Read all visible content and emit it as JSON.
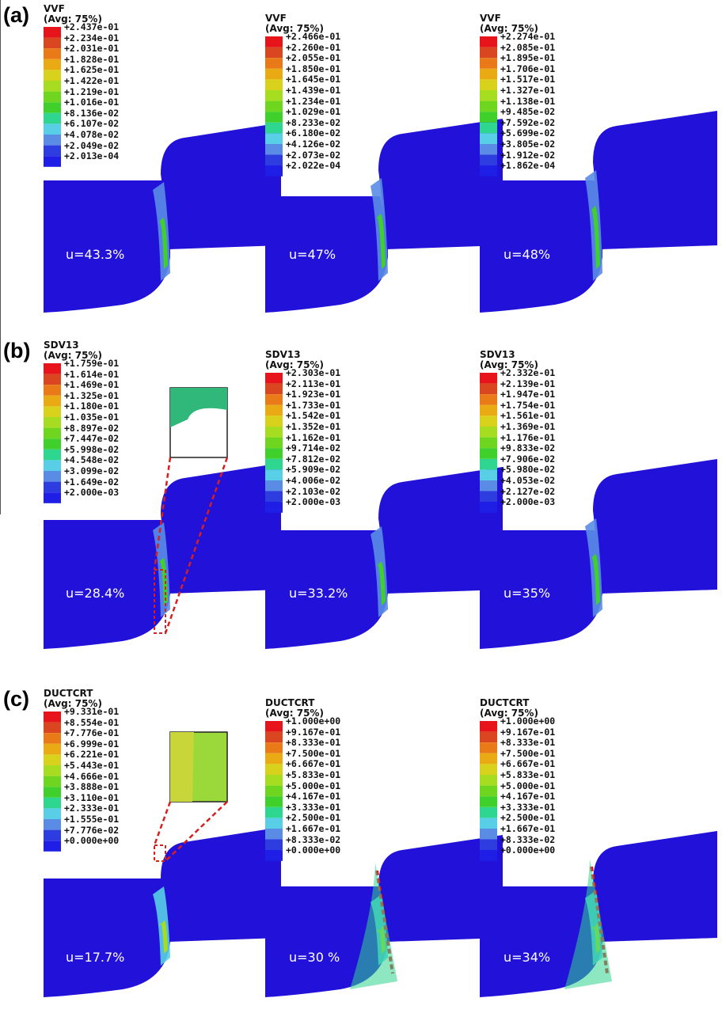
{
  "figure": {
    "rows": [
      {
        "label": "(a)",
        "panels": [
          {
            "variable": "VVF",
            "avg": "(Avg: 75%)",
            "u": "u=43.3%",
            "ticks": [
              "+2.437e-01",
              "+2.234e-01",
              "+2.031e-01",
              "+1.828e-01",
              "+1.625e-01",
              "+1.422e-01",
              "+1.219e-01",
              "+1.016e-01",
              "+8.136e-02",
              "+6.107e-02",
              "+4.078e-02",
              "+2.049e-02",
              "+2.013e-04"
            ]
          },
          {
            "variable": "VVF",
            "avg": "(Avg: 75%)",
            "u": "u=47%",
            "ticks": [
              "+2.466e-01",
              "+2.260e-01",
              "+2.055e-01",
              "+1.850e-01",
              "+1.645e-01",
              "+1.439e-01",
              "+1.234e-01",
              "+1.029e-01",
              "+8.233e-02",
              "+6.180e-02",
              "+4.126e-02",
              "+2.073e-02",
              "+2.022e-04"
            ]
          },
          {
            "variable": "VVF",
            "avg": "(Avg: 75%)",
            "u": "u=48%",
            "ticks": [
              "+2.274e-01",
              "+2.085e-01",
              "+1.895e-01",
              "+1.706e-01",
              "+1.517e-01",
              "+1.327e-01",
              "+1.138e-01",
              "+9.485e-02",
              "+7.592e-02",
              "+5.699e-02",
              "+3.805e-02",
              "+1.912e-02",
              "+1.862e-04"
            ]
          }
        ]
      },
      {
        "label": "(b)",
        "panels": [
          {
            "variable": "SDV13",
            "avg": "(Avg: 75%)",
            "u": "u=28.4%",
            "ticks": [
              "+1.759e-01",
              "+1.614e-01",
              "+1.469e-01",
              "+1.325e-01",
              "+1.180e-01",
              "+1.035e-01",
              "+8.897e-02",
              "+7.447e-02",
              "+5.998e-02",
              "+4.548e-02",
              "+3.099e-02",
              "+1.649e-02",
              "+2.000e-03"
            ]
          },
          {
            "variable": "SDV13",
            "avg": "(Avg: 75%)",
            "u": "u=33.2%",
            "ticks": [
              "+2.303e-01",
              "+2.113e-01",
              "+1.923e-01",
              "+1.733e-01",
              "+1.542e-01",
              "+1.352e-01",
              "+1.162e-01",
              "+9.714e-02",
              "+7.812e-02",
              "+5.909e-02",
              "+4.006e-02",
              "+2.103e-02",
              "+2.000e-03"
            ]
          },
          {
            "variable": "SDV13",
            "avg": "(Avg: 75%)",
            "u": "u=35%",
            "ticks": [
              "+2.332e-01",
              "+2.139e-01",
              "+1.947e-01",
              "+1.754e-01",
              "+1.561e-01",
              "+1.369e-01",
              "+1.176e-01",
              "+9.833e-02",
              "+7.906e-02",
              "+5.980e-02",
              "+4.053e-02",
              "+2.127e-02",
              "+2.000e-03"
            ]
          }
        ]
      },
      {
        "label": "(c)",
        "panels": [
          {
            "variable": "DUCTCRT",
            "avg": "(Avg: 75%)",
            "u": "u=17.7%",
            "ticks": [
              "+9.331e-01",
              "+8.554e-01",
              "+7.776e-01",
              "+6.999e-01",
              "+6.221e-01",
              "+5.443e-01",
              "+4.666e-01",
              "+3.888e-01",
              "+3.110e-01",
              "+2.333e-01",
              "+1.555e-01",
              "+7.776e-02",
              "+0.000e+00"
            ]
          },
          {
            "variable": "DUCTCRT",
            "avg": "(Avg: 75%)",
            "u": "u=30 %",
            "ticks": [
              "+1.000e+00",
              "+9.167e-01",
              "+8.333e-01",
              "+7.500e-01",
              "+6.667e-01",
              "+5.833e-01",
              "+5.000e-01",
              "+4.167e-01",
              "+3.333e-01",
              "+2.500e-01",
              "+1.667e-01",
              "+8.333e-02",
              "+0.000e+00"
            ]
          },
          {
            "variable": "DUCTCRT",
            "avg": "(Avg: 75%)",
            "u": "u=34%",
            "ticks": [
              "+1.000e+00",
              "+9.167e-01",
              "+8.333e-01",
              "+7.500e-01",
              "+6.667e-01",
              "+5.833e-01",
              "+5.000e-01",
              "+4.167e-01",
              "+3.333e-01",
              "+2.500e-01",
              "+1.667e-01",
              "+8.333e-02",
              "+0.000e+00"
            ]
          }
        ]
      }
    ]
  },
  "colors": {
    "legend_bands": [
      "#e8141c",
      "#d9461f",
      "#e97a17",
      "#eaaa14",
      "#d9d21c",
      "#a6dd20",
      "#6ed61e",
      "#3fd02c",
      "#2fd68f",
      "#58cfe6",
      "#5a8ce6",
      "#2e3de0",
      "#1e1ee6"
    ],
    "specimen_body": "#2212d9",
    "zoom_box_line": "#d62020",
    "label_text": "#ffffff"
  }
}
